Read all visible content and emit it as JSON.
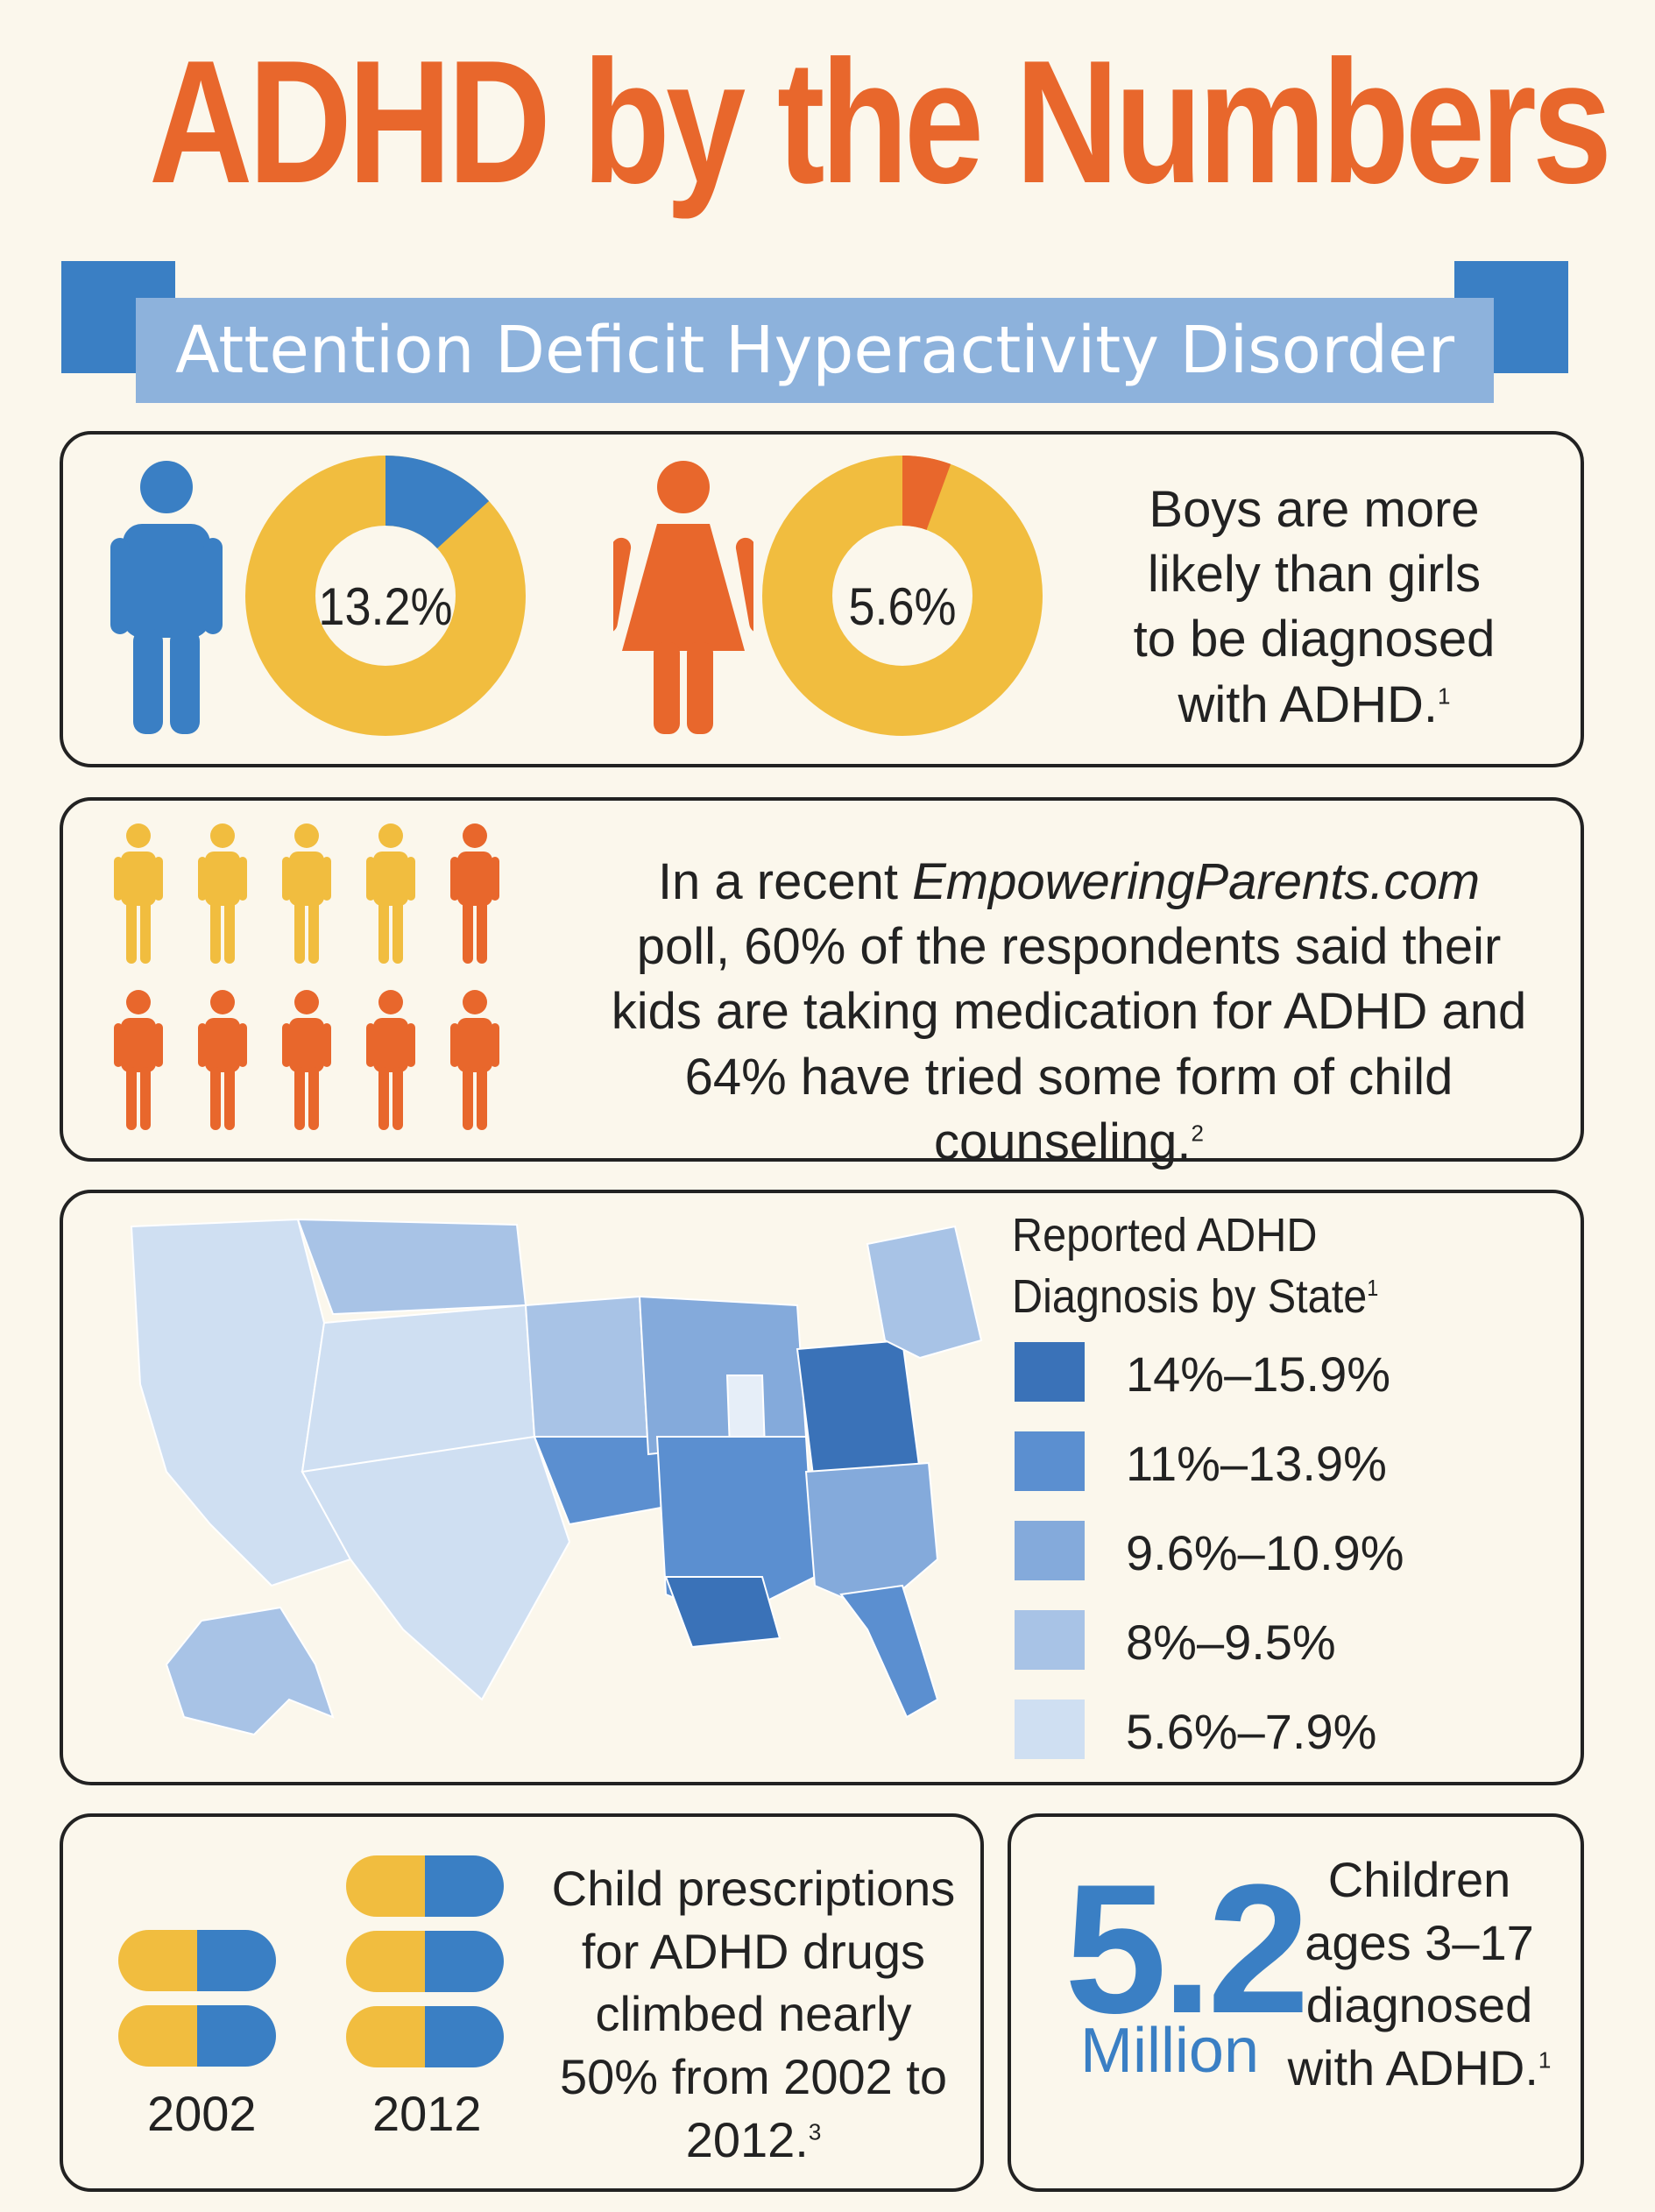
{
  "header": {
    "title": "ADHD by the Numbers",
    "subtitle": "Attention Deficit Hyperactivity Disorder"
  },
  "colors": {
    "orange": "#e8672c",
    "blue": "#3a7fc4",
    "light_blue": "#8db2dc",
    "yellow": "#f1bd3f",
    "background": "#fbf7ec"
  },
  "gender_panel": {
    "boys_percent": "13.2%",
    "boys_value": 13.2,
    "girls_percent": "5.6%",
    "girls_value": 5.6,
    "text": "Boys are more likely than girls to be diagnosed with ADHD.",
    "footnote": "1"
  },
  "poll_panel": {
    "text_before": "In a recent ",
    "site": "EmpoweringParents.com",
    "text_after": " poll, 60% of the respondents said their kids are taking medication for ADHD and 64% have tried some form of child counseling.",
    "footnote": "2",
    "people_total": 10,
    "people_highlighted": 6
  },
  "map_panel": {
    "legend_title": "Reported ADHD Diagnosis by State",
    "footnote": "1",
    "legend": [
      {
        "label": "14%–15.9%",
        "color": "#3a72b8"
      },
      {
        "label": "11%–13.9%",
        "color": "#5b8fd0"
      },
      {
        "label": "9.6%–10.9%",
        "color": "#84aadb"
      },
      {
        "label": "8%–9.5%",
        "color": "#a8c3e6"
      },
      {
        "label": "5.6%–7.9%",
        "color": "#cfdff2"
      }
    ]
  },
  "prescriptions_panel": {
    "year_a": "2002",
    "year_b": "2012",
    "pills_a": 2,
    "pills_b": 3,
    "text": "Child prescriptions for ADHD drugs climbed nearly 50% from 2002 to 2012.",
    "footnote": "3"
  },
  "children_panel": {
    "number": "5.2",
    "unit": "Million",
    "text": "Children ages 3–17 diagnosed with ADHD.",
    "footnote": "1"
  }
}
